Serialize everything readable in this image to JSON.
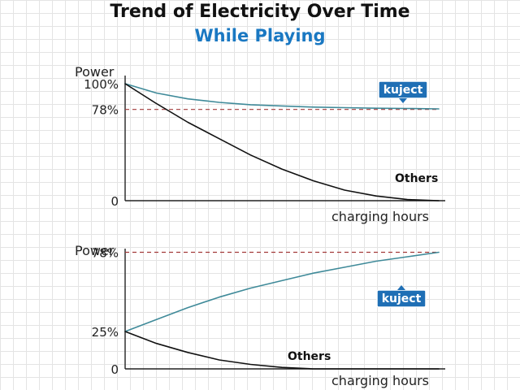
{
  "title": "Trend of Electricity Over Time",
  "subtitle": "While Playing",
  "colors": {
    "subtitle": "#1a78c2",
    "kuject_line": "#3f8a99",
    "others_line": "#111111",
    "reference_line": "#a33a3a",
    "tag_fill": "#1f6fb5"
  },
  "chart_data": [
    {
      "type": "line",
      "ylabel": "Power",
      "xlabel": "charging hours",
      "ylim": [
        0,
        100
      ],
      "yticks": [
        "100%",
        "78%",
        "0"
      ],
      "ytick_values": [
        100,
        78,
        0
      ],
      "reference_line": 78,
      "xlim": [
        0,
        1
      ],
      "series": [
        {
          "name": "kuject",
          "x": [
            0,
            0.1,
            0.2,
            0.3,
            0.4,
            0.5,
            0.6,
            0.7,
            0.8,
            0.9,
            1.0
          ],
          "values": [
            100,
            92,
            87,
            84,
            82,
            81,
            80,
            79.5,
            79,
            78.8,
            78.5
          ]
        },
        {
          "name": "Others",
          "x": [
            0,
            0.1,
            0.2,
            0.3,
            0.4,
            0.5,
            0.6,
            0.7,
            0.8,
            0.9,
            1.0
          ],
          "values": [
            100,
            83,
            67,
            53,
            39,
            27,
            17,
            9,
            4,
            1,
            0
          ]
        }
      ]
    },
    {
      "type": "line",
      "ylabel": "Power",
      "xlabel": "charging hours",
      "ylim": [
        0,
        100
      ],
      "yticks": [
        "78%",
        "25%",
        "0"
      ],
      "ytick_values": [
        78,
        25,
        0
      ],
      "reference_line": 78,
      "xlim": [
        0,
        1
      ],
      "series": [
        {
          "name": "kuject",
          "x": [
            0,
            0.1,
            0.2,
            0.3,
            0.4,
            0.5,
            0.6,
            0.7,
            0.8,
            0.9,
            1.0
          ],
          "values": [
            25,
            33,
            41,
            48,
            54,
            59,
            64,
            68,
            72,
            75,
            78
          ]
        },
        {
          "name": "Others",
          "x": [
            0,
            0.1,
            0.2,
            0.3,
            0.4,
            0.5,
            0.6,
            0.7,
            0.8,
            0.9,
            1.0
          ],
          "values": [
            25,
            17,
            11,
            6,
            3,
            1,
            0,
            0,
            0,
            0,
            0
          ]
        }
      ]
    }
  ]
}
